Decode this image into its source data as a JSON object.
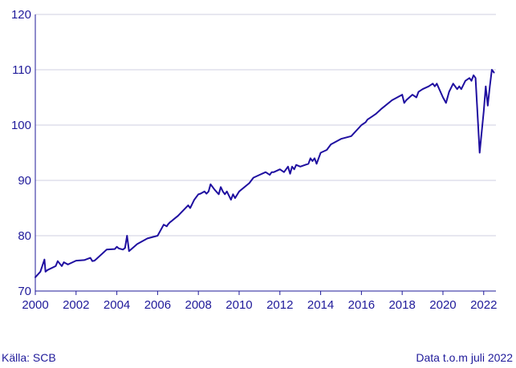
{
  "chart_data": {
    "type": "line",
    "title": "",
    "xlabel": "",
    "ylabel": "",
    "xlim": [
      2000.0,
      2022.6
    ],
    "ylim": [
      70,
      120
    ],
    "x_ticks": [
      "2000",
      "2002",
      "2004",
      "2006",
      "2008",
      "2010",
      "2012",
      "2014",
      "2016",
      "2018",
      "2020",
      "2022"
    ],
    "y_ticks": [
      "70",
      "80",
      "90",
      "100",
      "110",
      "120"
    ],
    "grid": "horizontal",
    "legend": "none",
    "series": [
      {
        "color": "#1f0fa0",
        "x": [
          2000.0,
          2000.25,
          2000.45,
          2000.5,
          2000.6,
          2001.0,
          2001.1,
          2001.3,
          2001.4,
          2001.5,
          2001.6,
          2002.0,
          2002.4,
          2002.7,
          2002.8,
          2002.9,
          2003.0,
          2003.5,
          2003.9,
          2004.0,
          2004.1,
          2004.3,
          2004.4,
          2004.5,
          2004.6,
          2005.0,
          2005.5,
          2006.0,
          2006.3,
          2006.45,
          2006.5,
          2006.6,
          2006.7,
          2006.8,
          2007.0,
          2007.5,
          2007.6,
          2007.8,
          2008.0,
          2008.1,
          2008.3,
          2008.4,
          2008.5,
          2008.6,
          2008.8,
          2009.0,
          2009.1,
          2009.2,
          2009.3,
          2009.4,
          2009.6,
          2009.7,
          2009.8,
          2010.0,
          2010.5,
          2010.7,
          2011.0,
          2011.3,
          2011.5,
          2011.6,
          2011.7,
          2012.0,
          2012.2,
          2012.4,
          2012.5,
          2012.6,
          2012.7,
          2012.8,
          2013.0,
          2013.4,
          2013.5,
          2013.6,
          2013.7,
          2013.8,
          2014.0,
          2014.3,
          2014.5,
          2015.0,
          2015.5,
          2016.0,
          2016.2,
          2016.3,
          2016.5,
          2016.7,
          2017.0,
          2017.5,
          2018.0,
          2018.1,
          2018.2,
          2018.5,
          2018.7,
          2018.8,
          2019.0,
          2019.3,
          2019.5,
          2019.6,
          2019.7,
          2020.0,
          2020.15,
          2020.3,
          2020.5,
          2020.7,
          2020.8,
          2020.9,
          2021.1,
          2021.3,
          2021.4,
          2021.5,
          2021.6,
          2021.8,
          2022.0,
          2022.1,
          2022.2,
          2022.3,
          2022.4,
          2022.5
        ],
        "y": [
          72.5,
          73.5,
          75.7,
          73.5,
          73.8,
          74.5,
          75.4,
          74.5,
          75.2,
          75.0,
          74.8,
          75.5,
          75.6,
          76.0,
          75.4,
          75.5,
          75.8,
          77.5,
          77.6,
          78.0,
          77.7,
          77.5,
          77.8,
          80.0,
          77.2,
          78.5,
          79.5,
          80.0,
          82.0,
          81.7,
          82.0,
          82.4,
          82.7,
          83.0,
          83.6,
          85.5,
          85.0,
          86.5,
          87.5,
          87.6,
          88.0,
          87.6,
          88.0,
          89.3,
          88.3,
          87.5,
          88.8,
          88.0,
          87.5,
          88.0,
          86.5,
          87.5,
          86.8,
          88.0,
          89.5,
          90.5,
          91.0,
          91.5,
          91.0,
          91.5,
          91.5,
          92.0,
          91.5,
          92.5,
          91.2,
          92.5,
          92.0,
          92.8,
          92.5,
          93.0,
          94.0,
          93.5,
          94.0,
          93.0,
          95.0,
          95.5,
          96.5,
          97.5,
          98.0,
          100.0,
          100.5,
          101.0,
          101.5,
          102.0,
          103.0,
          104.5,
          105.5,
          104.0,
          104.5,
          105.5,
          105.0,
          106.0,
          106.5,
          107.0,
          107.5,
          107.0,
          107.5,
          105.0,
          104.0,
          106.0,
          107.5,
          106.5,
          107.0,
          106.5,
          108.0,
          108.5,
          108.0,
          109.0,
          108.5,
          95.0,
          102.5,
          107.0,
          103.5,
          107.0,
          110.0,
          109.5
        ]
      }
    ]
  },
  "footer": {
    "source": "Källa: SCB",
    "data_note": "Data t.o.m juli 2022"
  }
}
